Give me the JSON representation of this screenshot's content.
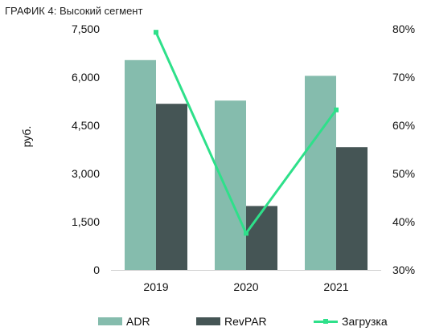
{
  "chart_title": "ГРАФИК 4: Высокий сегмент",
  "chart_data": {
    "type": "bar",
    "categories": [
      "2019",
      "2020",
      "2021"
    ],
    "series": [
      {
        "name": "ADR",
        "type": "bar",
        "axis": "left",
        "color": "#85bcad",
        "values": [
          6530,
          5270,
          6040
        ]
      },
      {
        "name": "RevPAR",
        "type": "bar",
        "axis": "left",
        "color": "#455555",
        "values": [
          5170,
          1990,
          3820
        ]
      },
      {
        "name": "Загрузка",
        "type": "line",
        "axis": "right",
        "color": "#2ee08a",
        "values": [
          79.3,
          37.6,
          63.2
        ]
      }
    ],
    "ylabel": "руб.",
    "ylim": [
      0,
      7500
    ],
    "yticks": [
      "0",
      "1,500",
      "3,000",
      "4,500",
      "6,000",
      "7,500"
    ],
    "y2lim": [
      30,
      80
    ],
    "y2ticks": [
      "30%",
      "40%",
      "50%",
      "60%",
      "70%",
      "80%"
    ],
    "grid": false,
    "legend_position": "bottom"
  }
}
